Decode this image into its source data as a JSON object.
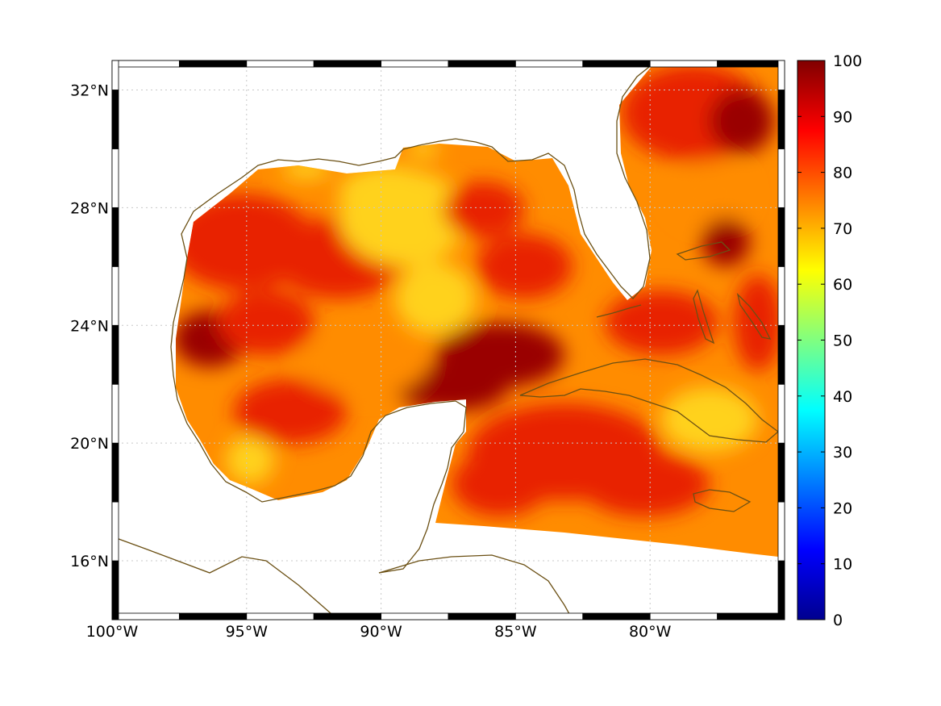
{
  "map": {
    "lon_range": [
      -100,
      -75
    ],
    "lat_range": [
      14,
      33
    ],
    "grid": true,
    "lon_ticks": [
      {
        "value": -100,
        "label": "100°W"
      },
      {
        "value": -95,
        "label": "95°W"
      },
      {
        "value": -90,
        "label": "90°W"
      },
      {
        "value": -85,
        "label": "85°W"
      },
      {
        "value": -80,
        "label": "80°W"
      }
    ],
    "lat_ticks": [
      {
        "value": 32,
        "label": "32°N"
      },
      {
        "value": 28,
        "label": "28°N"
      },
      {
        "value": 24,
        "label": "24°N"
      },
      {
        "value": 20,
        "label": "20°N"
      },
      {
        "value": 16,
        "label": "16°N"
      }
    ],
    "coastline_color": "#6b5014",
    "field_colors": {
      "low": "#ffd21a",
      "mid": "#ff8c00",
      "high": "#e82000",
      "max": "#9a0000"
    }
  },
  "colorbar": {
    "min": 0,
    "max": 100,
    "colormap": "jet",
    "ticks": [
      {
        "value": 100,
        "label": "100"
      },
      {
        "value": 90,
        "label": "90"
      },
      {
        "value": 80,
        "label": "80"
      },
      {
        "value": 70,
        "label": "70"
      },
      {
        "value": 60,
        "label": "60"
      },
      {
        "value": 50,
        "label": "50"
      },
      {
        "value": 40,
        "label": "40"
      },
      {
        "value": 30,
        "label": "30"
      },
      {
        "value": 20,
        "label": "20"
      },
      {
        "value": 10,
        "label": "10"
      },
      {
        "value": 0,
        "label": "0"
      }
    ]
  }
}
